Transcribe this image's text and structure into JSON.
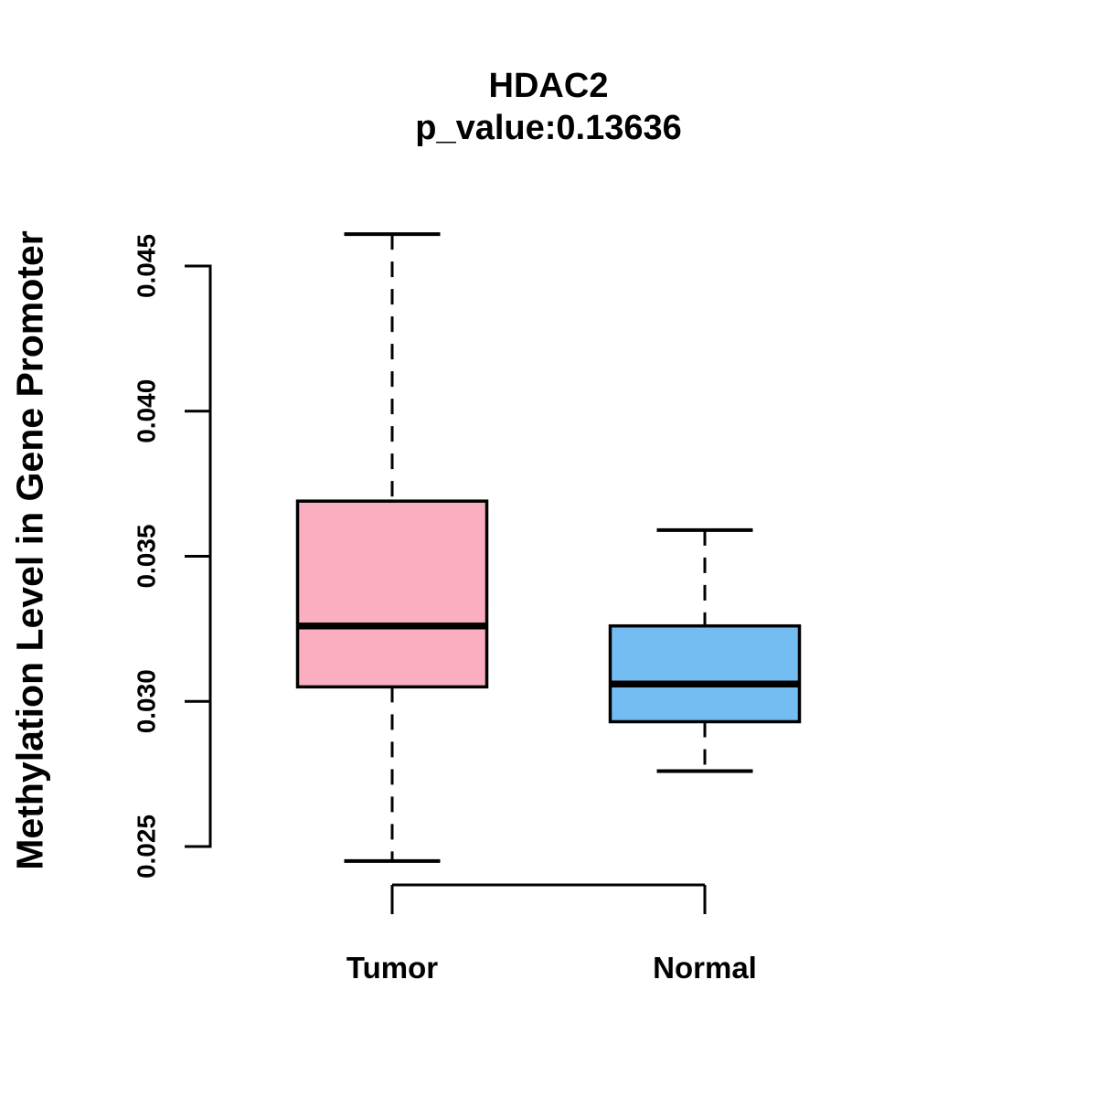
{
  "figure": {
    "title": "HDAC2",
    "subtitle": "p_value:0.13636",
    "ylabel": "Methylation Level in Gene Promoter"
  },
  "chart_data": {
    "type": "boxplot",
    "title": "HDAC2",
    "subtitle": "p_value:0.13636",
    "xlabel": "",
    "ylabel": "Methylation Level in Gene Promoter",
    "categories": [
      "Tumor",
      "Normal"
    ],
    "y_ticks": [
      0.025,
      0.03,
      0.035,
      0.04,
      0.045
    ],
    "ylim": [
      0.0245,
      0.0461
    ],
    "grid": false,
    "legend": "none",
    "colors": {
      "tumor_fill": "#FCAEC1",
      "normal_fill": "#74BDF2",
      "line": "#000000",
      "background": "#ffffff"
    },
    "series": [
      {
        "name": "Tumor",
        "box_color": "#FCAEC1",
        "whisker_low": 0.0245,
        "q1": 0.0305,
        "median": 0.0326,
        "q3": 0.0369,
        "whisker_high": 0.0461
      },
      {
        "name": "Normal",
        "box_color": "#74BDF2",
        "whisker_low": 0.0276,
        "q1": 0.0293,
        "median": 0.0306,
        "q3": 0.0326,
        "whisker_high": 0.0359
      }
    ]
  }
}
